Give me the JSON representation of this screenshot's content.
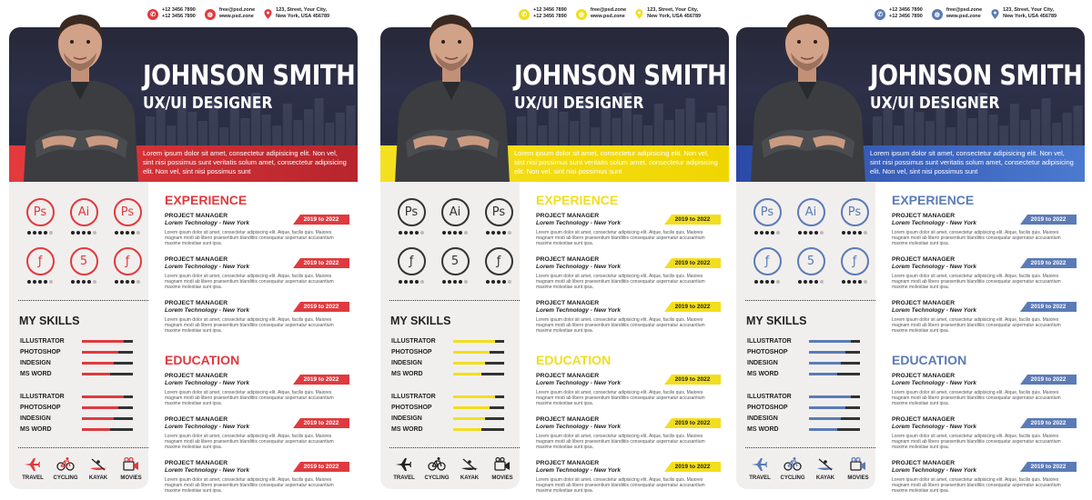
{
  "resumes": [
    {
      "accent": "#e03a3e",
      "dateText": "#ffffff",
      "bandGrad": "linear-gradient(90deg,#e53a3d,#b7252d)"
    },
    {
      "accent": "#f2de1e",
      "dateText": "#222222",
      "bandGrad": "linear-gradient(90deg,#f5e021,#f0d600)"
    },
    {
      "accent": "#5b7bb6",
      "dateText": "#ffffff",
      "bandGrad": "linear-gradient(90deg,#2b4aa8,#4b7ad0)"
    }
  ],
  "contact": {
    "phone1": "+12 3456 7890",
    "phone2": "+12 3456 7890",
    "email": "free@psd.zone",
    "web": "www.psd.zone",
    "addr1": "123, Street, Your City,",
    "addr2": "New York, USA 456789"
  },
  "name": "JOHNSON SMITH",
  "role": "UX/UI DESIGNER",
  "intro": "Lorem ipsum dolor sit amet, consectetur adipisicing elit. Non vel, sint nisi possimus sunt veritatis solum amet, consectetur adipisicing elit. Non vel, sint nisi possimus sunt",
  "software": [
    {
      "label": "Ps",
      "icon": "photoshop-icon",
      "rating": 4
    },
    {
      "label": "Ai",
      "icon": "illustrator-icon",
      "rating": 4
    },
    {
      "label": "Ps",
      "icon": "photoshop-icon",
      "rating": 4
    },
    {
      "label": "ƒ",
      "icon": "flash-icon",
      "rating": 4
    },
    {
      "label": "5",
      "icon": "html5-icon",
      "rating": 4
    },
    {
      "label": "ƒ",
      "icon": "flash-icon",
      "rating": 4
    }
  ],
  "skills_title": "MY SKILLS",
  "skills1": [
    {
      "label": "ILLUSTRATOR",
      "level": 0.82
    },
    {
      "label": "PHOTOSHOP",
      "level": 0.72
    },
    {
      "label": "INDESIGN",
      "level": 0.62
    },
    {
      "label": "MS WORD",
      "level": 0.55
    }
  ],
  "skills2": [
    {
      "label": "ILLUSTRATOR",
      "level": 0.82
    },
    {
      "label": "PHOTOSHOP",
      "level": 0.72
    },
    {
      "label": "INDESIGN",
      "level": 0.62
    },
    {
      "label": "MS WORD",
      "level": 0.55
    }
  ],
  "hobbies": [
    {
      "label": "TRAVEL",
      "icon": "airplane-icon"
    },
    {
      "label": "CYCLING",
      "icon": "bicycle-icon"
    },
    {
      "label": "KAYAK",
      "icon": "kayak-icon"
    },
    {
      "label": "MOVIES",
      "icon": "camera-icon"
    }
  ],
  "experience_title": "EXPERIENCE",
  "education_title": "EDUCATION",
  "job": {
    "title": "PROJECT MANAGER",
    "company": "Lorem Technology - New York",
    "date": "2019 to 2022",
    "desc": "Lorem ipsum dolor sit amet, consectetur adipisicing elit. Atque, facilis quis. Maiores magnam modi ab libero praesentium blanditiis consequatur aspernatur accusantium maxime molestiae sunt ipsa."
  }
}
